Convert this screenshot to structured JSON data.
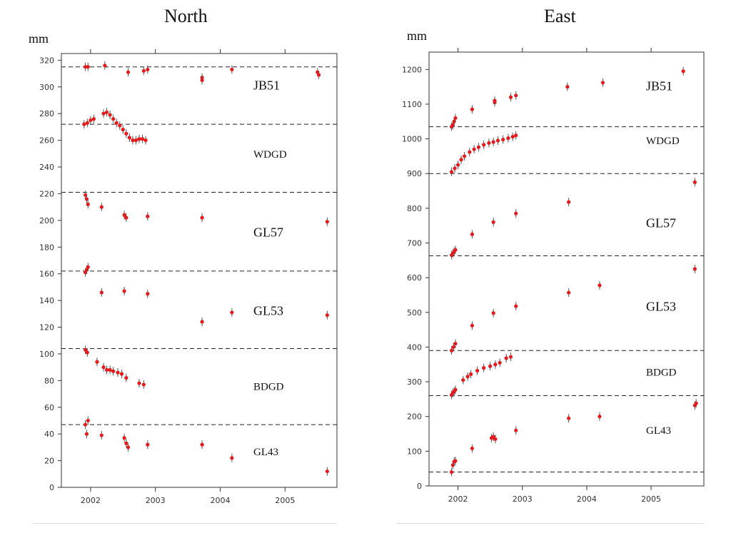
{
  "chart_data": [
    {
      "type": "scatter",
      "title": "North",
      "ylabel": "mm",
      "xlim": [
        2001.55,
        2005.8
      ],
      "ylim": [
        0,
        325
      ],
      "yticks": [
        "0",
        "20",
        "40",
        "60",
        "80",
        "100",
        "120",
        "140",
        "160",
        "180",
        "200",
        "220",
        "240",
        "260",
        "280",
        "300",
        "320"
      ],
      "xticks": [
        "2002",
        "2003",
        "2004",
        "2005"
      ],
      "marker_color": "#e41a1c",
      "errorbar_color": "#555555",
      "dividers": [
        315,
        272,
        221,
        162,
        104,
        47
      ],
      "sites": [
        {
          "name": "JB51",
          "label_y": 298,
          "points": [
            [
              2001.92,
              315
            ],
            [
              2001.96,
              315
            ],
            [
              2002.22,
              316
            ],
            [
              2002.58,
              311
            ],
            [
              2002.82,
              312
            ],
            [
              2002.88,
              313
            ],
            [
              2003.72,
              307
            ],
            [
              2003.72,
              305
            ],
            [
              2004.18,
              313
            ],
            [
              2005.5,
              311
            ],
            [
              2005.52,
              309
            ]
          ]
        },
        {
          "name": "WDGD",
          "label_y": 247,
          "points": [
            [
              2001.9,
              272
            ],
            [
              2001.95,
              273
            ],
            [
              2002.0,
              275
            ],
            [
              2002.05,
              276
            ],
            [
              2002.2,
              280
            ],
            [
              2002.25,
              281
            ],
            [
              2002.3,
              279
            ],
            [
              2002.35,
              276
            ],
            [
              2002.4,
              273
            ],
            [
              2002.45,
              271
            ],
            [
              2002.5,
              268
            ],
            [
              2002.55,
              265
            ],
            [
              2002.6,
              262
            ],
            [
              2002.65,
              260
            ],
            [
              2002.7,
              260
            ],
            [
              2002.75,
              261
            ],
            [
              2002.8,
              261
            ],
            [
              2002.85,
              260
            ]
          ]
        },
        {
          "name": "GL57",
          "label_y": 188,
          "points": [
            [
              2001.92,
              219
            ],
            [
              2001.94,
              216
            ],
            [
              2001.96,
              212
            ],
            [
              2002.17,
              210
            ],
            [
              2002.52,
              204
            ],
            [
              2002.55,
              202
            ],
            [
              2002.88,
              203
            ],
            [
              2003.72,
              202
            ],
            [
              2005.65,
              199
            ]
          ]
        },
        {
          "name": "GL53",
          "label_y": 129,
          "points": [
            [
              2001.92,
              161
            ],
            [
              2001.94,
              163
            ],
            [
              2001.96,
              165
            ],
            [
              2002.17,
              146
            ],
            [
              2002.52,
              147
            ],
            [
              2002.88,
              145
            ],
            [
              2003.72,
              124
            ],
            [
              2004.18,
              131
            ],
            [
              2005.65,
              129
            ]
          ]
        },
        {
          "name": "BDGD",
          "label_y": 73,
          "points": [
            [
              2001.92,
              103
            ],
            [
              2001.95,
              101
            ],
            [
              2002.1,
              94
            ],
            [
              2002.2,
              90
            ],
            [
              2002.25,
              88
            ],
            [
              2002.3,
              88
            ],
            [
              2002.35,
              87
            ],
            [
              2002.42,
              86
            ],
            [
              2002.48,
              85
            ],
            [
              2002.55,
              82
            ],
            [
              2002.75,
              78
            ],
            [
              2002.82,
              77
            ]
          ]
        },
        {
          "name": "GL43",
          "label_y": 24,
          "points": [
            [
              2001.92,
              47
            ],
            [
              2001.94,
              40
            ],
            [
              2001.96,
              50
            ],
            [
              2002.17,
              39
            ],
            [
              2002.52,
              37
            ],
            [
              2002.55,
              33
            ],
            [
              2002.58,
              30
            ],
            [
              2002.88,
              32
            ],
            [
              2003.72,
              32
            ],
            [
              2004.18,
              22
            ],
            [
              2005.65,
              12
            ]
          ]
        }
      ]
    },
    {
      "type": "scatter",
      "title": "East",
      "ylabel": "mm",
      "xlim": [
        2001.55,
        2005.82
      ],
      "ylim": [
        0,
        1250
      ],
      "yticks": [
        "0",
        "100",
        "200",
        "300",
        "400",
        "500",
        "600",
        "700",
        "800",
        "900",
        "1000",
        "1100",
        "1200"
      ],
      "xticks": [
        "2002",
        "2003",
        "2004",
        "2005"
      ],
      "marker_color": "#e41a1c",
      "errorbar_color": "#555555",
      "dividers": [
        1035,
        900,
        663,
        390,
        260,
        40
      ],
      "sites": [
        {
          "name": "JB51",
          "label_y": 1140,
          "points": [
            [
              2001.9,
              1035
            ],
            [
              2001.92,
              1040
            ],
            [
              2001.94,
              1050
            ],
            [
              2001.96,
              1060
            ],
            [
              2002.22,
              1085
            ],
            [
              2002.57,
              1105
            ],
            [
              2002.57,
              1110
            ],
            [
              2002.82,
              1120
            ],
            [
              2002.9,
              1125
            ],
            [
              2003.7,
              1150
            ],
            [
              2004.25,
              1162
            ],
            [
              2005.5,
              1195
            ]
          ]
        },
        {
          "name": "WDGD",
          "label_y": 985,
          "points": [
            [
              2001.9,
              905
            ],
            [
              2001.95,
              915
            ],
            [
              2002.0,
              925
            ],
            [
              2002.05,
              940
            ],
            [
              2002.1,
              950
            ],
            [
              2002.18,
              962
            ],
            [
              2002.25,
              970
            ],
            [
              2002.32,
              976
            ],
            [
              2002.4,
              983
            ],
            [
              2002.48,
              988
            ],
            [
              2002.55,
              991
            ],
            [
              2002.62,
              995
            ],
            [
              2002.7,
              998
            ],
            [
              2002.78,
              1002
            ],
            [
              2002.85,
              1006
            ],
            [
              2002.9,
              1010
            ]
          ]
        },
        {
          "name": "GL57",
          "label_y": 745,
          "points": [
            [
              2001.9,
              665
            ],
            [
              2001.92,
              670
            ],
            [
              2001.94,
              675
            ],
            [
              2001.96,
              680
            ],
            [
              2002.22,
              725
            ],
            [
              2002.55,
              760
            ],
            [
              2002.9,
              785
            ],
            [
              2003.72,
              818
            ],
            [
              2005.68,
              875
            ]
          ]
        },
        {
          "name": "GL53",
          "label_y": 505,
          "points": [
            [
              2001.9,
              390
            ],
            [
              2001.93,
              400
            ],
            [
              2001.96,
              410
            ],
            [
              2002.22,
              462
            ],
            [
              2002.55,
              498
            ],
            [
              2002.9,
              518
            ],
            [
              2003.72,
              557
            ],
            [
              2004.2,
              578
            ],
            [
              2005.68,
              625
            ]
          ]
        },
        {
          "name": "BDGD",
          "label_y": 318,
          "points": [
            [
              2001.9,
              262
            ],
            [
              2001.92,
              268
            ],
            [
              2001.94,
              272
            ],
            [
              2001.96,
              277
            ],
            [
              2002.08,
              305
            ],
            [
              2002.15,
              315
            ],
            [
              2002.2,
              322
            ],
            [
              2002.3,
              332
            ],
            [
              2002.4,
              340
            ],
            [
              2002.5,
              345
            ],
            [
              2002.58,
              350
            ],
            [
              2002.65,
              355
            ],
            [
              2002.75,
              368
            ],
            [
              2002.82,
              372
            ]
          ]
        },
        {
          "name": "GL43",
          "label_y": 150,
          "points": [
            [
              2001.9,
              40
            ],
            [
              2001.92,
              60
            ],
            [
              2001.94,
              70
            ],
            [
              2001.96,
              72
            ],
            [
              2002.22,
              108
            ],
            [
              2002.52,
              138
            ],
            [
              2002.55,
              142
            ],
            [
              2002.58,
              135
            ],
            [
              2002.9,
              160
            ],
            [
              2003.72,
              195
            ],
            [
              2004.2,
              200
            ],
            [
              2005.68,
              232
            ],
            [
              2005.7,
              238
            ]
          ]
        }
      ]
    }
  ]
}
